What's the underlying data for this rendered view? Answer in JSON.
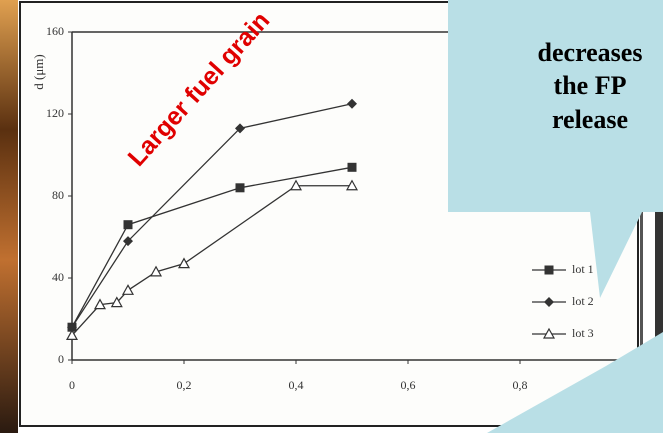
{
  "chart_data": {
    "type": "line",
    "y_label": "d (μm)",
    "annotation": "Larger fuel grain",
    "xlim": [
      0,
      1
    ],
    "ylim": [
      0,
      160
    ],
    "xticks": [
      0,
      {
        "value": 0.2,
        "label": "0,2"
      },
      {
        "value": 0.4,
        "label": "0,4"
      },
      {
        "value": 0.6,
        "label": "0,6"
      },
      {
        "value": 0.8,
        "label": "0,8"
      }
    ],
    "yticks": [
      0,
      40,
      80,
      120,
      160
    ],
    "series": [
      {
        "name": "lot 1",
        "color": "#333333",
        "marker": "square",
        "x": [
          0,
          0.1,
          0.3,
          0.5
        ],
        "values": [
          16,
          66,
          84,
          94
        ]
      },
      {
        "name": "lot 2",
        "color": "#333333",
        "marker": "diamond",
        "x": [
          0,
          0.1,
          0.3,
          0.5
        ],
        "values": [
          16,
          58,
          113,
          125
        ]
      },
      {
        "name": "lot 3",
        "color": "#333333",
        "marker": "triangle",
        "x": [
          0,
          0.05,
          0.08,
          0.1,
          0.15,
          0.2,
          0.4,
          0.5
        ],
        "values": [
          12,
          27,
          28,
          34,
          43,
          47,
          85,
          85
        ]
      }
    ]
  },
  "callout": {
    "lines": [
      "decreases",
      "the FP",
      "release"
    ]
  }
}
